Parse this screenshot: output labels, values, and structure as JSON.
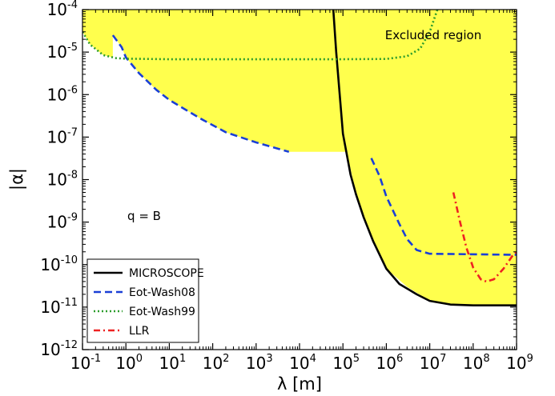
{
  "chart_data": {
    "type": "line",
    "xlabel": "λ [m]",
    "ylabel": "|α|",
    "x_scale": "log",
    "y_scale": "log",
    "xlim": [
      0.1,
      1000000000
    ],
    "ylim": [
      1e-12,
      0.0001
    ],
    "x_ticks": [
      {
        "base": "10",
        "exp": "-1",
        "value": 0.1
      },
      {
        "base": "10",
        "exp": "0",
        "value": 1
      },
      {
        "base": "10",
        "exp": "1",
        "value": 10
      },
      {
        "base": "10",
        "exp": "2",
        "value": 100
      },
      {
        "base": "10",
        "exp": "3",
        "value": 1000
      },
      {
        "base": "10",
        "exp": "4",
        "value": 10000
      },
      {
        "base": "10",
        "exp": "5",
        "value": 100000
      },
      {
        "base": "10",
        "exp": "6",
        "value": 1000000
      },
      {
        "base": "10",
        "exp": "7",
        "value": 10000000
      },
      {
        "base": "10",
        "exp": "8",
        "value": 100000000
      },
      {
        "base": "10",
        "exp": "9",
        "value": 1000000000
      }
    ],
    "y_ticks": [
      {
        "base": "10",
        "exp": "-12",
        "value": 1e-12
      },
      {
        "base": "10",
        "exp": "-11",
        "value": 1e-11
      },
      {
        "base": "10",
        "exp": "-10",
        "value": 1e-10
      },
      {
        "base": "10",
        "exp": "-9",
        "value": 1e-09
      },
      {
        "base": "10",
        "exp": "-8",
        "value": 1e-08
      },
      {
        "base": "10",
        "exp": "-7",
        "value": 1e-07
      },
      {
        "base": "10",
        "exp": "-6",
        "value": 1e-06
      },
      {
        "base": "10",
        "exp": "-5",
        "value": 1e-05
      },
      {
        "base": "10",
        "exp": "-4",
        "value": 0.0001
      }
    ],
    "annotations": {
      "excluded": "Excluded region",
      "q": "q = B"
    },
    "region": {
      "name": "Excluded region",
      "color": "#ffff4d",
      "boundary": [
        [
          0.1,
          0.0001
        ],
        [
          1,
          0.0001
        ],
        [
          60000,
          0.0001
        ],
        [
          70000,
          1e-05
        ],
        [
          100000,
          1.2e-07
        ],
        [
          200000,
          4.5e-09
        ],
        [
          500000,
          3.5e-10
        ],
        [
          1000000,
          8e-11
        ],
        [
          3000000,
          3e-11
        ],
        [
          10000000,
          1.4e-11
        ],
        [
          30000000,
          1.15e-11
        ],
        [
          1000000000,
          1.1e-11
        ],
        [
          1000000000,
          0.0001
        ]
      ],
      "extra_boundary": [
        [
          0.1,
          3e-05
        ],
        [
          0.15,
          1.5e-05
        ],
        [
          0.3,
          8.5e-06
        ],
        [
          0.6,
          7.2e-06
        ],
        [
          1,
          7e-06
        ],
        [
          10,
          6.8e-06
        ],
        [
          100,
          6.8e-06
        ],
        [
          0.5,
          2.5e-05
        ],
        [
          0.8,
          1.3e-05
        ],
        [
          1,
          7.5e-06
        ],
        [
          2,
          3.2e-06
        ],
        [
          5,
          1.3e-06
        ],
        [
          10,
          7.5e-07
        ],
        [
          50,
          2.8e-07
        ],
        [
          200,
          1.3e-07
        ],
        [
          1000,
          7.5e-08
        ],
        [
          5700,
          4.5e-08
        ],
        [
          140000,
          4.5e-08
        ]
      ]
    },
    "series": [
      {
        "name": "MICROSCOPE",
        "color": "#000000",
        "style": "solid",
        "points": [
          [
            60000,
            0.0001
          ],
          [
            70000,
            1e-05
          ],
          [
            100000,
            1.2e-07
          ],
          [
            150000,
            1.3e-08
          ],
          [
            200000,
            4.5e-09
          ],
          [
            300000,
            1.3e-09
          ],
          [
            500000,
            3.5e-10
          ],
          [
            1000000,
            8e-11
          ],
          [
            2000000,
            3.5e-11
          ],
          [
            5000000,
            2e-11
          ],
          [
            10000000,
            1.4e-11
          ],
          [
            30000000,
            1.15e-11
          ],
          [
            100000000,
            1.1e-11
          ],
          [
            1000000000,
            1.1e-11
          ]
        ]
      },
      {
        "name": "Eot-Wash08",
        "color": "#1a3fd6",
        "style": "dashed",
        "points": [
          [
            0.5,
            2.5e-05
          ],
          [
            0.8,
            1.3e-05
          ],
          [
            1,
            7.5e-06
          ],
          [
            2,
            3.2e-06
          ],
          [
            5,
            1.3e-06
          ],
          [
            10,
            7.5e-07
          ],
          [
            50,
            2.8e-07
          ],
          [
            200,
            1.3e-07
          ],
          [
            1000,
            7.5e-08
          ],
          [
            5700,
            4.5e-08
          ]
        ],
        "points_2": [
          [
            450000,
            3.2e-08
          ],
          [
            700000,
            1.2e-08
          ],
          [
            1000000,
            4e-09
          ],
          [
            2000000,
            9e-10
          ],
          [
            3000000,
            4e-10
          ],
          [
            5000000,
            2.2e-10
          ],
          [
            10000000,
            1.8e-10
          ],
          [
            1000000000,
            1.7e-10
          ]
        ]
      },
      {
        "name": "Eot-Wash99",
        "color": "#2c9c2c",
        "style": "dotted",
        "points": [
          [
            0.1,
            3e-05
          ],
          [
            0.15,
            1.5e-05
          ],
          [
            0.3,
            8.5e-06
          ],
          [
            0.6,
            7.2e-06
          ],
          [
            1,
            7e-06
          ],
          [
            10,
            6.8e-06
          ],
          [
            1000,
            6.8e-06
          ],
          [
            100000,
            6.8e-06
          ],
          [
            1000000,
            6.9e-06
          ],
          [
            3000000,
            8e-06
          ],
          [
            6000000,
            1.2e-05
          ],
          [
            10000000,
            3e-05
          ],
          [
            15000000,
            0.0001
          ]
        ]
      },
      {
        "name": "LLR",
        "color": "#ee2222",
        "style": "dashdot",
        "points": [
          [
            35000000,
            5e-09
          ],
          [
            50000000,
            1e-09
          ],
          [
            70000000,
            2.5e-10
          ],
          [
            100000000,
            8.5e-11
          ],
          [
            150000000,
            4.5e-11
          ],
          [
            200000000,
            4e-11
          ],
          [
            300000000,
            4.5e-11
          ],
          [
            500000000,
            8e-11
          ],
          [
            800000000,
            1.6e-10
          ],
          [
            1000000000,
            2e-10
          ]
        ]
      }
    ],
    "legend_placement": "lower-left",
    "grid": false
  }
}
